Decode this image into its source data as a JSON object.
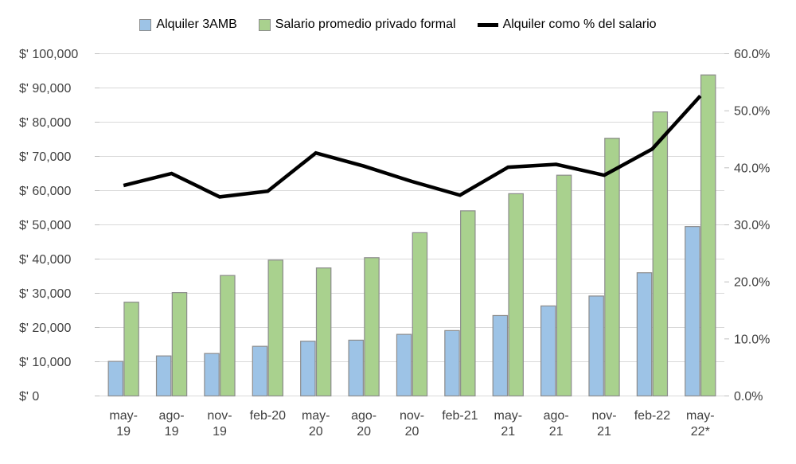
{
  "chart_data": {
    "type": "bar+line",
    "title": "",
    "legend_position": "top",
    "grid": true,
    "categories": [
      "may-19",
      "ago-19",
      "nov-19",
      "feb-20",
      "may-20",
      "ago-20",
      "nov-20",
      "feb-21",
      "may-21",
      "ago-21",
      "nov-21",
      "feb-22",
      "may-22*"
    ],
    "category_display": [
      [
        "may-",
        "19"
      ],
      [
        "ago-",
        "19"
      ],
      [
        "nov-",
        "19"
      ],
      [
        "feb-20"
      ],
      [
        "may-",
        "20"
      ],
      [
        "ago-",
        "20"
      ],
      [
        "nov-",
        "20"
      ],
      [
        "feb-21"
      ],
      [
        "may-",
        "21"
      ],
      [
        "ago-",
        "21"
      ],
      [
        "nov-",
        "21"
      ],
      [
        "feb-22"
      ],
      [
        "may-",
        "22*"
      ]
    ],
    "series": [
      {
        "name": "Alquiler 3AMB",
        "type": "bar",
        "axis": "left",
        "fill": "#9dc3e6",
        "border": "#8c8c8c",
        "values": [
          10100,
          11700,
          12400,
          14500,
          16000,
          16300,
          18000,
          19100,
          23500,
          26300,
          29200,
          36000,
          49500
        ]
      },
      {
        "name": "Salario promedio privado formal",
        "type": "bar",
        "axis": "left",
        "fill": "#a9d18e",
        "border": "#8c8c8c",
        "values": [
          27400,
          30200,
          35200,
          39700,
          37400,
          40400,
          47700,
          54100,
          59100,
          64500,
          75300,
          83000,
          93800
        ]
      },
      {
        "name": "Alquiler como % del salario",
        "type": "line",
        "axis": "right",
        "color": "#000000",
        "values": [
          36.9,
          39.0,
          34.9,
          35.9,
          42.6,
          40.3,
          37.6,
          35.2,
          40.1,
          40.6,
          38.7,
          43.3,
          52.6
        ]
      }
    ],
    "left_axis": {
      "min": 0,
      "max": 100000,
      "step": 10000,
      "tick_labels": [
        "$' 0",
        "$' 10,000",
        "$' 20,000",
        "$' 30,000",
        "$' 40,000",
        "$' 50,000",
        "$' 60,000",
        "$' 70,000",
        "$' 80,000",
        "$' 90,000",
        "$' 100,000"
      ]
    },
    "right_axis": {
      "min": 0,
      "max": 60,
      "step": 10,
      "tick_labels": [
        "0.0%",
        "10.0%",
        "20.0%",
        "30.0%",
        "40.0%",
        "50.0%",
        "60.0%"
      ]
    },
    "colors": {
      "gridline": "#d9d9d9",
      "axis_tick": "#bfbfbf",
      "tick_text": "#404040",
      "background": "#ffffff"
    }
  }
}
